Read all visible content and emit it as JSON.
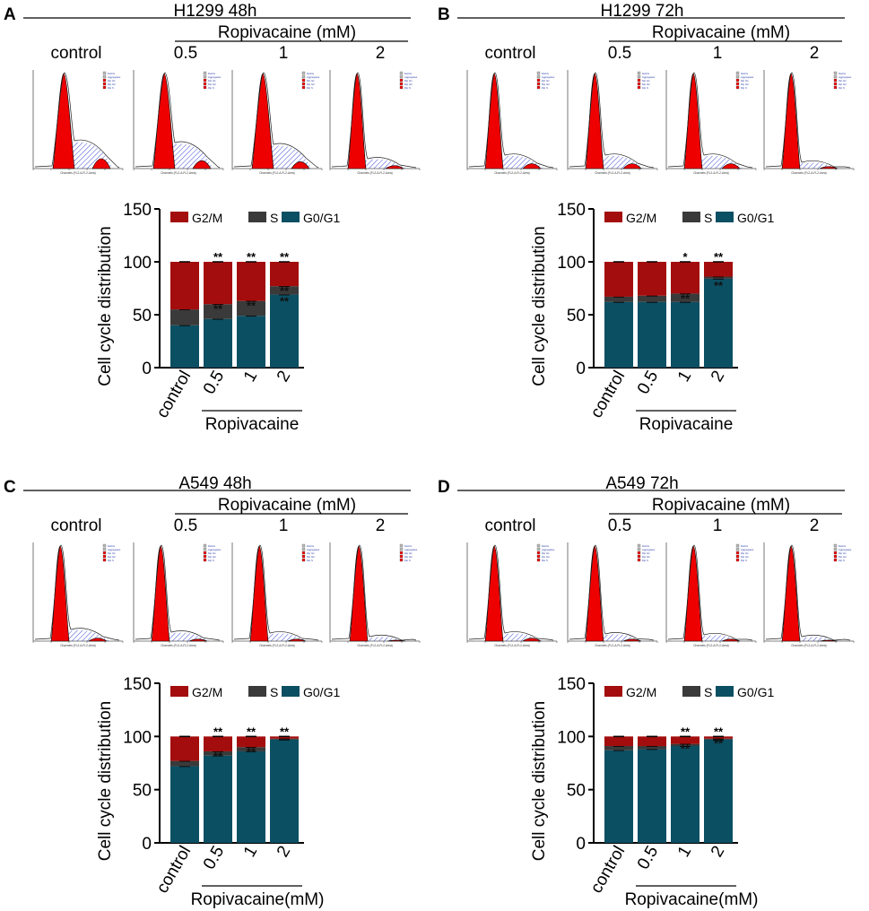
{
  "figure": {
    "colors": {
      "g2m": "#a30d0d",
      "s": "#3a3a3a",
      "g0g1": "#0b4f63",
      "histFill": "#ee0000",
      "hatch": "#3a4bd1"
    },
    "legend": [
      "G2/M",
      "S",
      "G0/G1"
    ],
    "control_label": "control",
    "drug_header": "Ropivacaine (mM)",
    "concentrations": [
      "0.5",
      "1",
      "2"
    ],
    "yaxis_label": "Cell cycle distribution",
    "histogram_xlabel": "Channels (FL2-A-FL2-Area)",
    "histogram_legend_items": [
      "Debris",
      "Aggregates",
      "Dip G1",
      "Dip G2",
      "Dip S"
    ]
  },
  "chart_data": [
    {
      "panel": "A",
      "type": "bar",
      "stacked": true,
      "title": "H1299  48h",
      "categories": [
        "control",
        "0.5",
        "1",
        "2"
      ],
      "xgroup_label": "Ropivacaine",
      "ylabel": "Cell cycle distribution",
      "ylim": [
        0,
        150
      ],
      "yticks": [
        0,
        50,
        100,
        150
      ],
      "series": [
        {
          "name": "G0/G1",
          "values": [
            40,
            46,
            49,
            69
          ]
        },
        {
          "name": "S",
          "values": [
            15,
            14,
            14,
            8
          ]
        },
        {
          "name": "G2/M",
          "values": [
            45,
            40,
            37,
            23
          ]
        }
      ],
      "annotations": {
        "S": [
          "",
          "**",
          "**",
          "**"
        ],
        "G0/G1": [
          "",
          "",
          "",
          "**"
        ],
        "G2/M": [
          "",
          "**",
          "**",
          "**"
        ]
      }
    },
    {
      "panel": "B",
      "type": "bar",
      "stacked": true,
      "title": "H1299   72h",
      "categories": [
        "control",
        "0.5",
        "1",
        "2"
      ],
      "xgroup_label": "Ropivacaine",
      "ylabel": "Cell cycle distribution",
      "ylim": [
        0,
        150
      ],
      "yticks": [
        0,
        50,
        100,
        150
      ],
      "series": [
        {
          "name": "G0/G1",
          "values": [
            62,
            62,
            62,
            84
          ]
        },
        {
          "name": "S",
          "values": [
            5,
            6,
            8,
            2
          ]
        },
        {
          "name": "G2/M",
          "values": [
            33,
            32,
            30,
            14
          ]
        }
      ],
      "annotations": {
        "S": [
          "",
          "",
          "**",
          ""
        ],
        "G0/G1": [
          "",
          "",
          "",
          "**"
        ],
        "G2/M": [
          "",
          "",
          "*",
          "**"
        ]
      }
    },
    {
      "panel": "C",
      "type": "bar",
      "stacked": true,
      "title": "A549   48h",
      "categories": [
        "control",
        "0.5",
        "1",
        "2"
      ],
      "xgroup_label": "Ropivacaine(mM)",
      "ylabel": "Cell cycle distribution",
      "ylim": [
        0,
        150
      ],
      "yticks": [
        0,
        50,
        100,
        150
      ],
      "series": [
        {
          "name": "G0/G1",
          "values": [
            72,
            82,
            86,
            97
          ]
        },
        {
          "name": "S",
          "values": [
            5,
            4,
            4,
            1
          ]
        },
        {
          "name": "G2/M",
          "values": [
            23,
            14,
            10,
            2
          ]
        }
      ],
      "annotations": {
        "S": [
          "",
          "**",
          "**",
          ""
        ],
        "G0/G1": [
          "",
          "",
          "",
          ""
        ],
        "G2/M": [
          "",
          "**",
          "**",
          "**"
        ]
      }
    },
    {
      "panel": "D",
      "type": "bar",
      "stacked": true,
      "title": "A549   72h",
      "categories": [
        "control",
        "0.5",
        "1",
        "2"
      ],
      "xgroup_label": "Ropivacaine(mM)",
      "ylabel": "Cell cycle distribution",
      "ylim": [
        0,
        150
      ],
      "yticks": [
        0,
        50,
        100,
        150
      ],
      "series": [
        {
          "name": "G0/G1",
          "values": [
            87,
            88,
            91,
            97
          ]
        },
        {
          "name": "S",
          "values": [
            4,
            3,
            2,
            1
          ]
        },
        {
          "name": "G2/M",
          "values": [
            9,
            9,
            7,
            2
          ]
        }
      ],
      "annotations": {
        "S": [
          "",
          "",
          "**",
          "**"
        ],
        "G0/G1": [
          "",
          "",
          "",
          ""
        ],
        "G2/M": [
          "",
          "",
          "**",
          "**"
        ]
      }
    }
  ]
}
